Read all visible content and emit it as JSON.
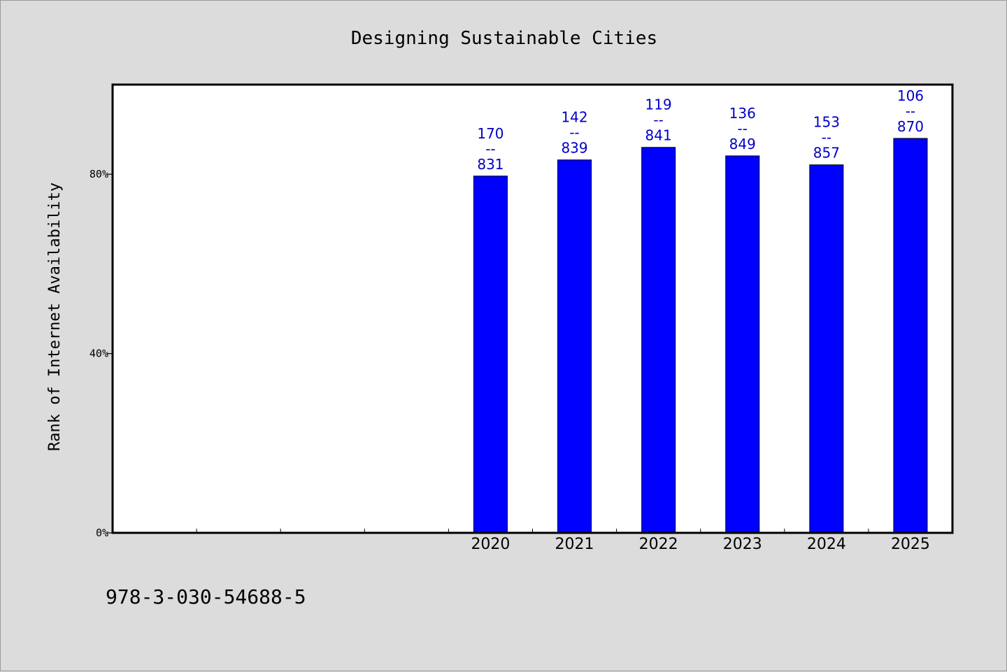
{
  "chart_data": {
    "type": "bar",
    "title": "Designing Sustainable Cities",
    "ylabel": "Rank of Internet Availability",
    "xlabel": "",
    "categories": [
      "",
      "",
      "",
      "",
      "2020",
      "2021",
      "2022",
      "2023",
      "2024",
      "2025"
    ],
    "values": [
      null,
      null,
      null,
      null,
      79.6,
      83.2,
      86.0,
      84.1,
      82.1,
      88.0
    ],
    "data_labels": [
      {
        "top": "",
        "bottom": ""
      },
      {
        "top": "",
        "bottom": ""
      },
      {
        "top": "",
        "bottom": ""
      },
      {
        "top": "",
        "bottom": ""
      },
      {
        "top": "170",
        "bottom": "831"
      },
      {
        "top": "142",
        "bottom": "839"
      },
      {
        "top": "119",
        "bottom": "841"
      },
      {
        "top": "136",
        "bottom": "849"
      },
      {
        "top": "153",
        "bottom": "857"
      },
      {
        "top": "106",
        "bottom": "870"
      }
    ],
    "label_separator": "--",
    "ylim": [
      0,
      100
    ],
    "yticks": [
      0,
      40,
      80
    ],
    "ytick_labels": [
      "0%",
      "40%",
      "80%"
    ],
    "bar_color": "#0000ff",
    "label_color": "#0000c8",
    "grid": false,
    "legend": "none"
  },
  "footer": {
    "isbn": "978-3-030-54688-5"
  },
  "colors": {
    "background": "#dcdcdc",
    "plot_background": "#ffffff"
  }
}
